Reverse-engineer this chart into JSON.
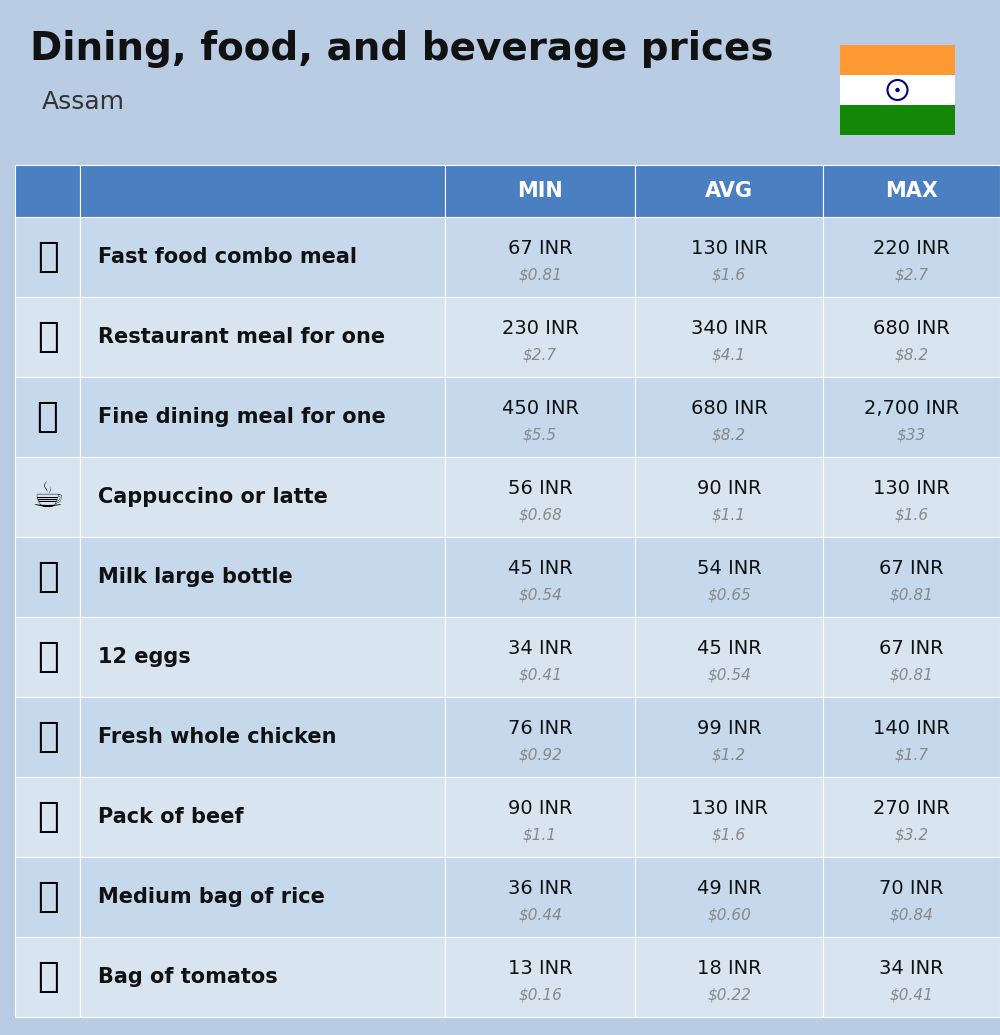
{
  "title": "Dining, food, and beverage prices",
  "subtitle": "Assam",
  "bg_color": "#b8cce4",
  "header_bg": "#4a7fc1",
  "header_text_color": "#ffffff",
  "row_colors": [
    "#c5d8ec",
    "#d8e5f0"
  ],
  "col_header": [
    "MIN",
    "AVG",
    "MAX"
  ],
  "items": [
    {
      "name": "Fast food combo meal",
      "emoji": "🍟",
      "min_inr": "67 INR",
      "min_usd": "$0.81",
      "avg_inr": "130 INR",
      "avg_usd": "$1.6",
      "max_inr": "220 INR",
      "max_usd": "$2.7"
    },
    {
      "name": "Restaurant meal for one",
      "emoji": "🍳",
      "min_inr": "230 INR",
      "min_usd": "$2.7",
      "avg_inr": "340 INR",
      "avg_usd": "$4.1",
      "max_inr": "680 INR",
      "max_usd": "$8.2"
    },
    {
      "name": "Fine dining meal for one",
      "emoji": "🍽️",
      "min_inr": "450 INR",
      "min_usd": "$5.5",
      "avg_inr": "680 INR",
      "avg_usd": "$8.2",
      "max_inr": "2,700 INR",
      "max_usd": "$33"
    },
    {
      "name": "Cappuccino or latte",
      "emoji": "☕",
      "min_inr": "56 INR",
      "min_usd": "$0.68",
      "avg_inr": "90 INR",
      "avg_usd": "$1.1",
      "max_inr": "130 INR",
      "max_usd": "$1.6"
    },
    {
      "name": "Milk large bottle",
      "emoji": "🥛",
      "min_inr": "45 INR",
      "min_usd": "$0.54",
      "avg_inr": "54 INR",
      "avg_usd": "$0.65",
      "max_inr": "67 INR",
      "max_usd": "$0.81"
    },
    {
      "name": "12 eggs",
      "emoji": "🥚",
      "min_inr": "34 INR",
      "min_usd": "$0.41",
      "avg_inr": "45 INR",
      "avg_usd": "$0.54",
      "max_inr": "67 INR",
      "max_usd": "$0.81"
    },
    {
      "name": "Fresh whole chicken",
      "emoji": "🍗",
      "min_inr": "76 INR",
      "min_usd": "$0.92",
      "avg_inr": "99 INR",
      "avg_usd": "$1.2",
      "max_inr": "140 INR",
      "max_usd": "$1.7"
    },
    {
      "name": "Pack of beef",
      "emoji": "🥩",
      "min_inr": "90 INR",
      "min_usd": "$1.1",
      "avg_inr": "130 INR",
      "avg_usd": "$1.6",
      "max_inr": "270 INR",
      "max_usd": "$3.2"
    },
    {
      "name": "Medium bag of rice",
      "emoji": "🍋",
      "min_inr": "36 INR",
      "min_usd": "$0.44",
      "avg_inr": "49 INR",
      "avg_usd": "$0.60",
      "max_inr": "70 INR",
      "max_usd": "$0.84"
    },
    {
      "name": "Bag of tomatos",
      "emoji": "🍅",
      "min_inr": "13 INR",
      "min_usd": "$0.16",
      "avg_inr": "18 INR",
      "avg_usd": "$0.22",
      "max_inr": "34 INR",
      "max_usd": "$0.41"
    }
  ],
  "india_flag_colors": [
    "#FF9933",
    "#ffffff",
    "#138808"
  ],
  "icon_col_color_even": "#c5d8ec",
  "icon_col_color_odd": "#d8e5f0",
  "header_icon_col_color": "#4a7fc1",
  "header_name_col_color": "#4a7fc1",
  "title_fontsize": 28,
  "subtitle_fontsize": 18,
  "header_fontsize": 15,
  "name_fontsize": 15,
  "inr_fontsize": 14,
  "usd_fontsize": 11
}
